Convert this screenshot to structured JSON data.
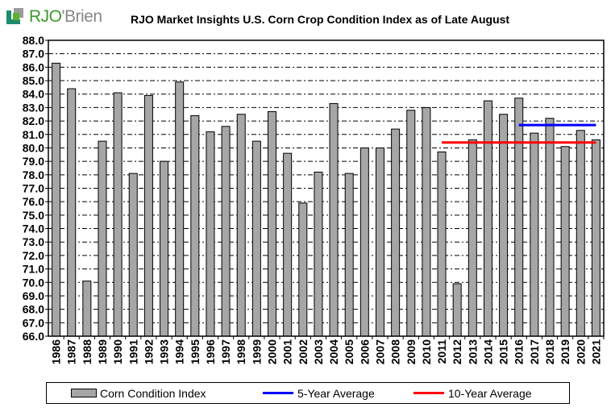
{
  "logo": {
    "text": "RJO'Brien"
  },
  "chart_data": {
    "type": "bar",
    "title": "RJO Market Insights U.S. Corn Crop Condition Index as of Late August",
    "categories": [
      "1986",
      "1987",
      "1988",
      "1989",
      "1990",
      "1991",
      "1992",
      "1993",
      "1994",
      "1995",
      "1996",
      "1997",
      "1998",
      "1999",
      "2000",
      "2001",
      "2002",
      "2003",
      "2004",
      "2005",
      "2006",
      "2007",
      "2008",
      "2009",
      "2010",
      "2011",
      "2012",
      "2013",
      "2014",
      "2015",
      "2016",
      "2017",
      "2018",
      "2019",
      "2020",
      "2021"
    ],
    "series": [
      {
        "name": "Corn Condition Index",
        "color": "#a6a6a6",
        "values": [
          86.3,
          84.4,
          70.1,
          80.5,
          84.1,
          78.1,
          83.9,
          79.0,
          84.9,
          82.4,
          81.2,
          81.6,
          82.5,
          80.5,
          82.7,
          79.6,
          75.9,
          78.2,
          83.3,
          78.1,
          80.0,
          80.0,
          81.4,
          82.8,
          83.0,
          79.7,
          69.9,
          80.6,
          83.5,
          82.5,
          83.7,
          81.1,
          82.2,
          80.1,
          81.3,
          80.6
        ]
      }
    ],
    "reference_lines": [
      {
        "name": "5-Year Average",
        "color": "#0000ff",
        "value": 81.7,
        "from": "2016",
        "to": "2021"
      },
      {
        "name": "10-Year Average",
        "color": "#ff0000",
        "value": 80.4,
        "from": "2011",
        "to": "2021"
      }
    ],
    "ylim": [
      66.0,
      88.0
    ],
    "yticks": [
      "66.0",
      "67.0",
      "68.0",
      "69.0",
      "70.0",
      "71.0",
      "72.0",
      "73.0",
      "74.0",
      "75.0",
      "76.0",
      "77.0",
      "78.0",
      "79.0",
      "80.0",
      "81.0",
      "82.0",
      "83.0",
      "84.0",
      "85.0",
      "86.0",
      "87.0",
      "88.0"
    ],
    "grid": true,
    "legend": {
      "placement": "bottom",
      "entries": [
        "Corn Condition Index",
        "5-Year Average",
        "10-Year Average"
      ]
    },
    "xlabel": "",
    "ylabel": ""
  }
}
